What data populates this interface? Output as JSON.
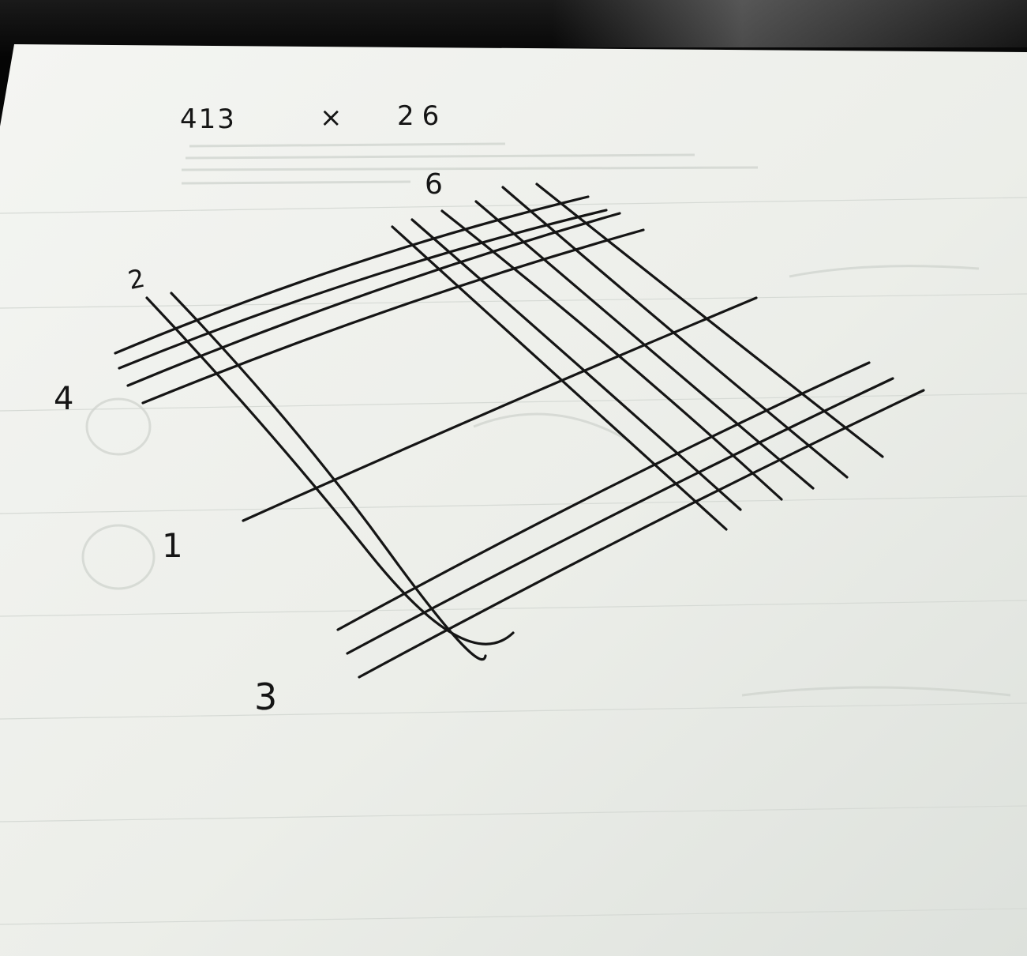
{
  "photo": {
    "problem": {
      "multiplicand": "413",
      "operator": "×",
      "multiplier": "26"
    },
    "group_labels": {
      "label_4": "4",
      "label_2": "2",
      "label_1": "1",
      "label_3": "3",
      "label_6": "6"
    },
    "colors": {
      "paper": "#eef0ec",
      "ink": "#151515",
      "desk": "#0b0b0b"
    }
  }
}
